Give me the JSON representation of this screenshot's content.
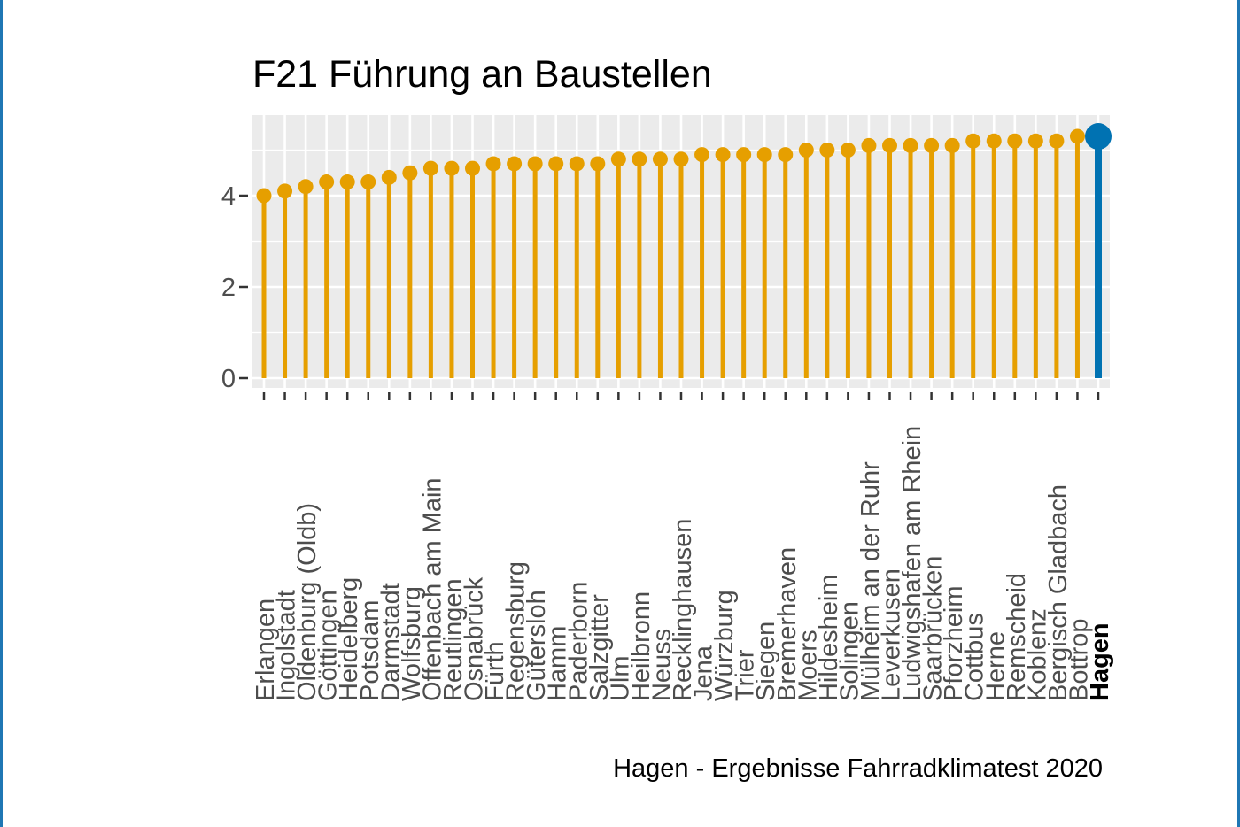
{
  "chart_data": {
    "type": "lollipop",
    "title": "F21 Führung an Baustellen",
    "caption": "Hagen - Ergebnisse Fahrradklimatest 2020",
    "xlabel": "",
    "ylabel": "",
    "ylim": [
      -0.2,
      5.6
    ],
    "yticks": [
      0,
      2,
      4
    ],
    "grid": true,
    "colors": {
      "default": "#E69F00",
      "highlight": "#0072B2",
      "panel": "#EBEBEB",
      "gridline": "#FFFFFF"
    },
    "highlight": "Hagen",
    "categories": [
      "Erlangen",
      "Ingolstadt",
      "Oldenburg (Oldb)",
      "Göttingen",
      "Heidelberg",
      "Potsdam",
      "Darmstadt",
      "Wolfsburg",
      "Offenbach am Main",
      "Reutlingen",
      "Osnabrück",
      "Fürth",
      "Regensburg",
      "Gütersloh",
      "Hamm",
      "Paderborn",
      "Salzgitter",
      "Ulm",
      "Heilbronn",
      "Neuss",
      "Recklinghausen",
      "Jena",
      "Würzburg",
      "Trier",
      "Siegen",
      "Bremerhaven",
      "Moers",
      "Hildesheim",
      "Solingen",
      "Mülheim an der Ruhr",
      "Leverkusen",
      "Ludwigshafen am Rhein",
      "Saarbrücken",
      "Pforzheim",
      "Cottbus",
      "Herne",
      "Remscheid",
      "Koblenz",
      "Bergisch Gladbach",
      "Bottrop",
      "Hagen"
    ],
    "values": [
      4.0,
      4.1,
      4.2,
      4.3,
      4.3,
      4.3,
      4.4,
      4.5,
      4.6,
      4.6,
      4.6,
      4.7,
      4.7,
      4.7,
      4.7,
      4.7,
      4.7,
      4.8,
      4.8,
      4.8,
      4.8,
      4.9,
      4.9,
      4.9,
      4.9,
      4.9,
      5.0,
      5.0,
      5.0,
      5.1,
      5.1,
      5.1,
      5.1,
      5.1,
      5.2,
      5.2,
      5.2,
      5.2,
      5.2,
      5.3,
      5.3
    ]
  }
}
